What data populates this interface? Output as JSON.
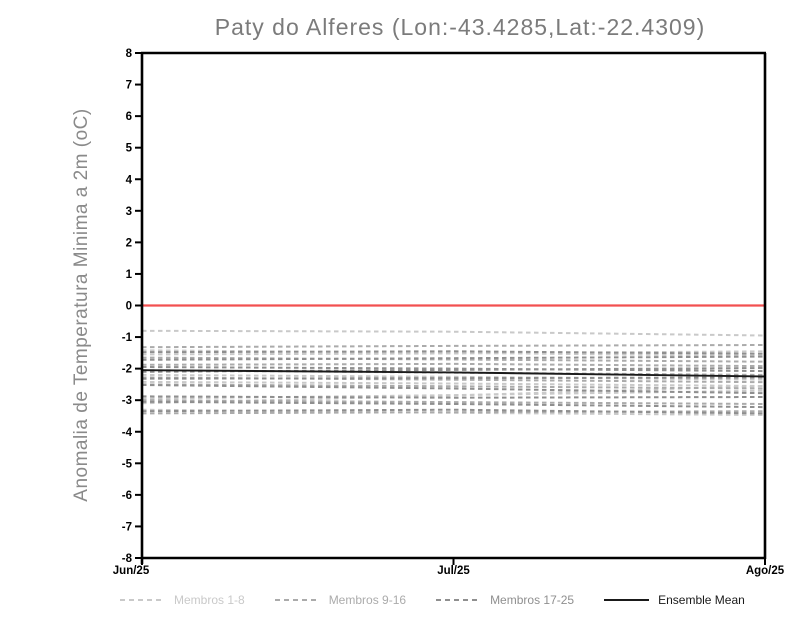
{
  "figure": {
    "title": "Paty do Alferes (Lon:-43.4285,Lat:-22.4309)",
    "ylabel": "Anomalia de Temperatura Minima a 2m (oC)"
  },
  "legend": {
    "items": [
      {
        "label": "Membros 1-8",
        "color": "#c9c9c9",
        "style": "dashed"
      },
      {
        "label": "Membros 9-16",
        "color": "#ababab",
        "style": "dashed"
      },
      {
        "label": "Membros 17-25",
        "color": "#8f8f8f",
        "style": "dashed"
      },
      {
        "label": "Ensemble Mean",
        "color": "#1a1a1a",
        "style": "solid"
      }
    ]
  },
  "chart_data": {
    "type": "line",
    "title": "Paty do Alferes (Lon:-43.4285,Lat:-22.4309)",
    "ylabel": "Anomalia de Temperatura Minima a 2m (oC)",
    "xlabel": "",
    "ylim": [
      -8,
      8
    ],
    "ytick_step": 1,
    "ytick_labels": [
      "8",
      "7",
      "6",
      "5",
      "4",
      "3",
      "2",
      "1",
      "0",
      "-1",
      "-2",
      "-3",
      "-4",
      "-5",
      "-6",
      "-7",
      "-8"
    ],
    "xticks": [
      {
        "label": "Jun/25",
        "pos": 0.0
      },
      {
        "label": "Jul/25",
        "pos": 0.5
      },
      {
        "label": "Ago/25",
        "pos": 1.0
      }
    ],
    "grid": false,
    "legend_position": "bottom",
    "axis_color": "#000000",
    "zero_line": {
      "value": 0,
      "color": "#f25050"
    },
    "x_member_points": [
      0,
      0.5,
      1
    ],
    "series": [
      {
        "name": "Membros 1-8",
        "color": "#c9c9c9",
        "dashed": true,
        "members": [
          [
            -0.8,
            -0.83,
            -0.95
          ],
          [
            -1.42,
            -1.5,
            -1.6
          ],
          [
            -1.55,
            -1.52,
            -1.45
          ],
          [
            -2.2,
            -2.26,
            -2.35
          ],
          [
            -2.42,
            -2.47,
            -2.55
          ],
          [
            -2.95,
            -2.84,
            -2.7
          ],
          [
            -3.1,
            -2.85,
            -2.55
          ],
          [
            -3.3,
            -3.4,
            -3.47
          ]
        ]
      },
      {
        "name": "Membros 9-16",
        "color": "#ababab",
        "dashed": true,
        "members": [
          [
            -1.32,
            -1.28,
            -1.25
          ],
          [
            -1.65,
            -1.71,
            -1.78
          ],
          [
            -1.88,
            -1.85,
            -1.92
          ],
          [
            -2.05,
            -2.13,
            -2.2
          ],
          [
            -2.28,
            -2.35,
            -2.43
          ],
          [
            -2.5,
            -2.56,
            -2.63
          ],
          [
            -3.0,
            -3.06,
            -3.12
          ],
          [
            -3.42,
            -3.38,
            -3.35
          ]
        ]
      },
      {
        "name": "Membros 17-25",
        "color": "#8f8f8f",
        "dashed": true,
        "members": [
          [
            -1.48,
            -1.45,
            -1.53
          ],
          [
            -1.72,
            -1.67,
            -1.62
          ],
          [
            -1.95,
            -2.0,
            -2.08
          ],
          [
            -2.1,
            -2.04,
            -1.98
          ],
          [
            -2.32,
            -2.3,
            -2.28
          ],
          [
            -2.52,
            -2.63,
            -2.78
          ],
          [
            -2.88,
            -2.92,
            -2.9
          ],
          [
            -3.05,
            -3.12,
            -3.22
          ],
          [
            -3.35,
            -3.3,
            -3.42
          ]
        ]
      },
      {
        "name": "Ensemble Mean",
        "color": "#1a1a1a",
        "dashed": false,
        "members": [
          [
            -2.05,
            -2.12,
            -2.25
          ]
        ]
      }
    ]
  }
}
